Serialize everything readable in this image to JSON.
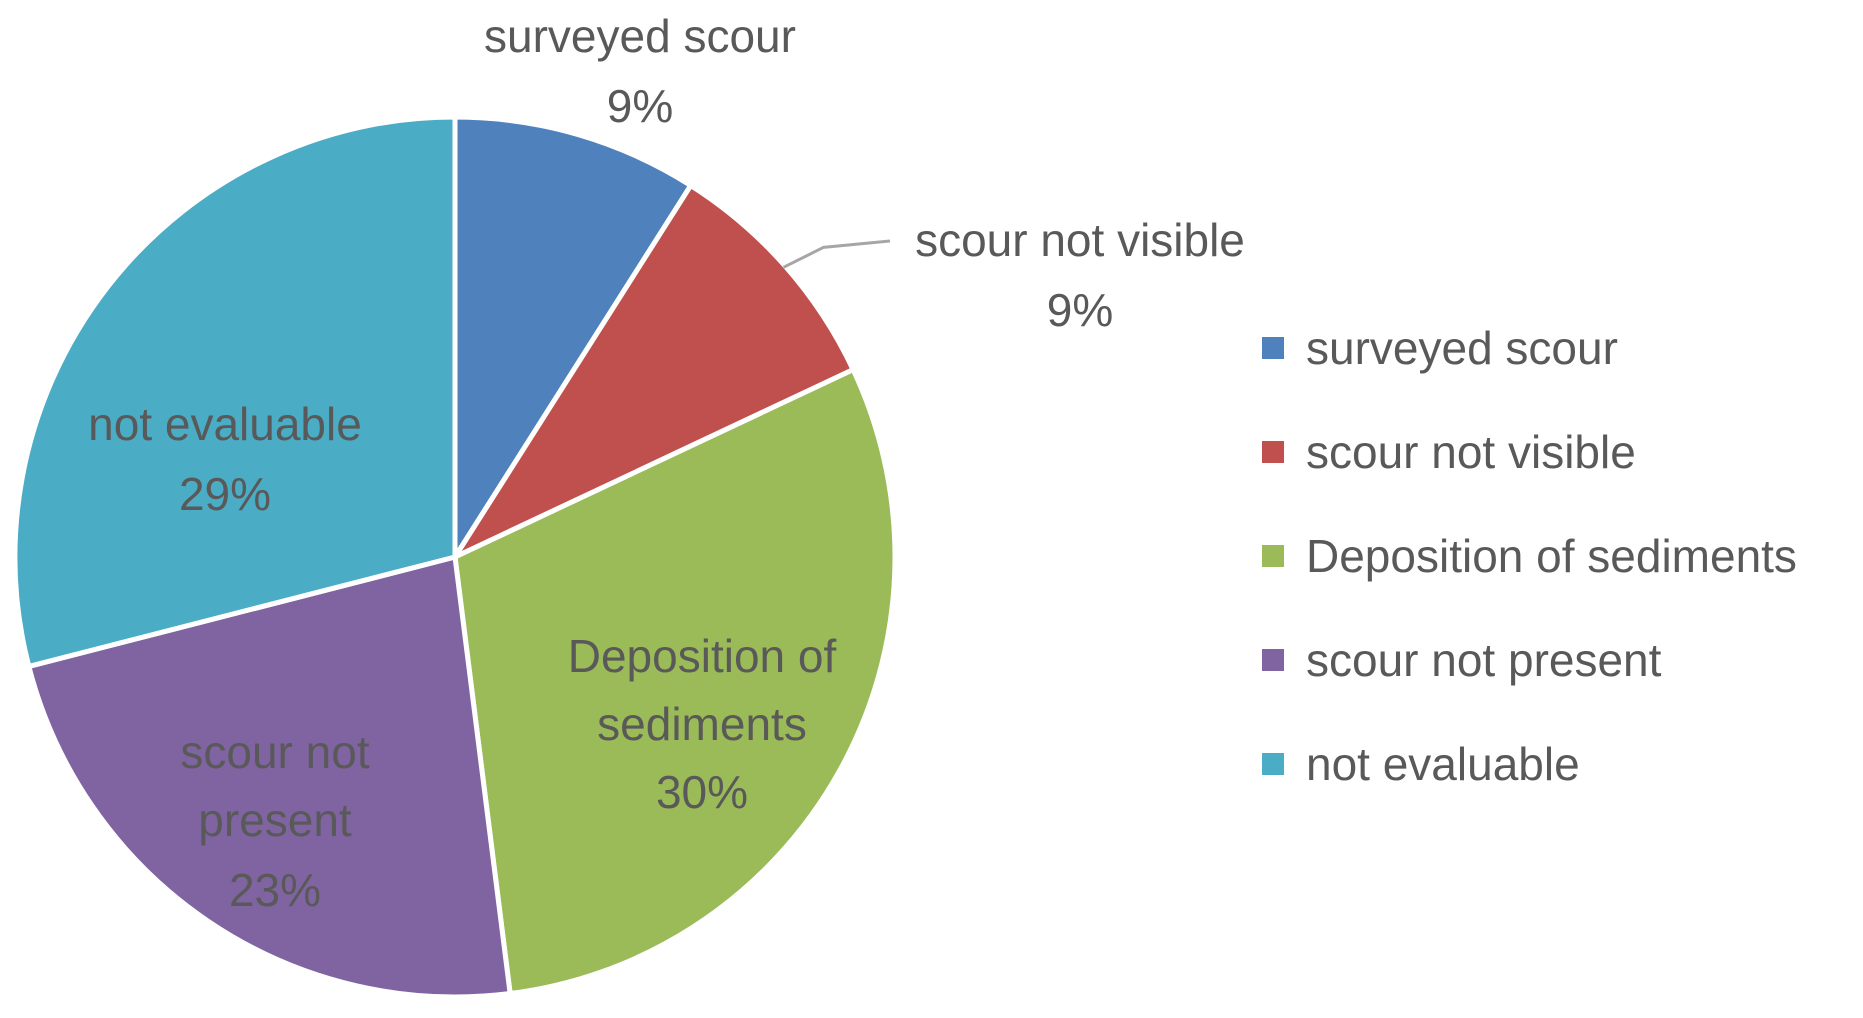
{
  "chart_data": {
    "type": "pie",
    "title": "",
    "legend_position": "right",
    "slices": [
      {
        "label": "surveyed scour",
        "value": 9,
        "display": "9%",
        "color": "#4F81BD"
      },
      {
        "label": "scour not visible",
        "value": 9,
        "display": "9%",
        "color": "#C0504D"
      },
      {
        "label": "Deposition of sediments",
        "value": 30,
        "display": "30%",
        "color": "#9BBB59"
      },
      {
        "label": "scour not present",
        "value": 23,
        "display": "23%",
        "color": "#8064A2"
      },
      {
        "label": "not evaluable",
        "value": 29,
        "display": "29%",
        "color": "#4BACC6"
      }
    ]
  }
}
